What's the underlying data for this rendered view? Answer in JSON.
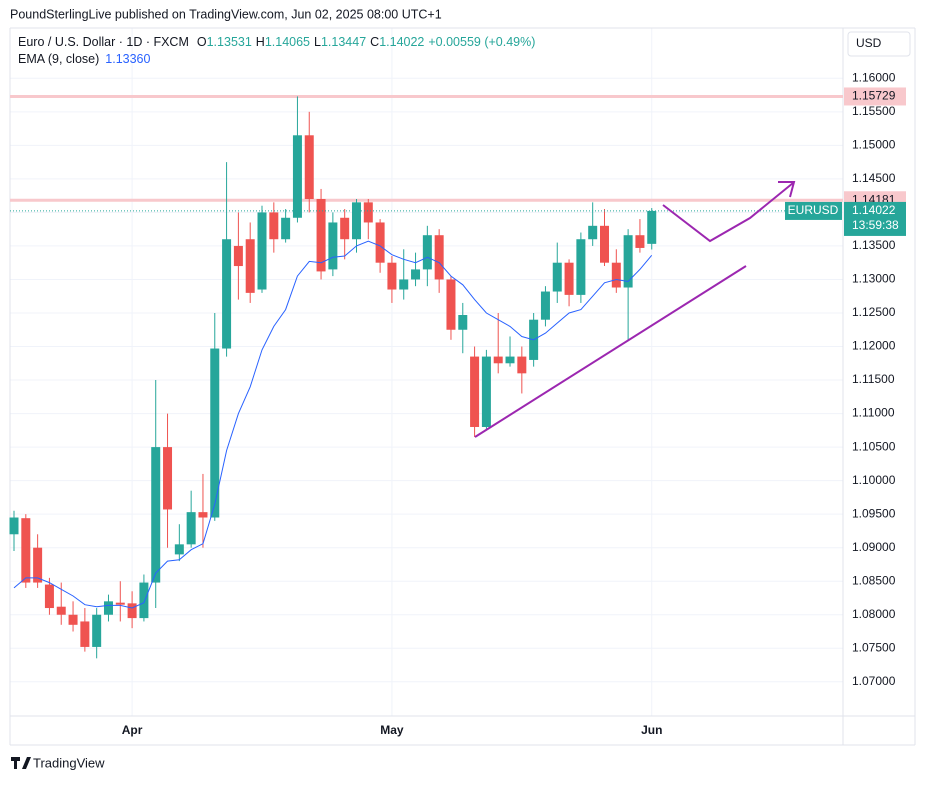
{
  "chart_data": {
    "type": "candlestick",
    "publisher": "PoundSterlingLive published on TradingView.com, Jun 02, 2025 08:00 UTC+1",
    "title": "Euro / U.S. Dollar · 1D · FXCM",
    "ohlc_labels": [
      "O",
      "H",
      "L",
      "C"
    ],
    "change": "+0.00559 (+0.49%)",
    "currency": "USD",
    "symbol": "EURUSD",
    "countdown": "13:59:38",
    "brand": "TradingView",
    "up_color": "#26a69a",
    "down_color": "#ef5350",
    "categories": [
      null,
      null,
      null,
      null,
      null,
      null,
      null,
      null,
      null,
      null,
      "Apr",
      null,
      null,
      null,
      null,
      null,
      null,
      null,
      null,
      null,
      null,
      null,
      null,
      null,
      null,
      null,
      null,
      null,
      null,
      null,
      null,
      null,
      "May",
      null,
      null,
      null,
      null,
      null,
      null,
      null,
      null,
      null,
      null,
      null,
      null,
      null,
      null,
      null,
      null,
      null,
      null,
      null,
      null,
      null,
      "Jun"
    ],
    "open": [
      1.092,
      1.0944,
      1.09,
      1.0845,
      1.0812,
      1.08,
      1.079,
      1.0752,
      1.08,
      1.0818,
      1.0817,
      1.0795,
      1.0848,
      1.105,
      1.089,
      1.0905,
      1.0953,
      1.0945,
      1.1197,
      1.135,
      1.136,
      1.1285,
      1.14,
      1.136,
      1.1392,
      1.1515,
      1.142,
      1.1315,
      1.1392,
      1.136,
      1.1415,
      1.1385,
      1.1325,
      1.1285,
      1.13,
      1.1315,
      1.1366,
      1.13,
      1.1225,
      1.1185,
      1.108,
      1.1185,
      1.1175,
      1.1185,
      1.118,
      1.124,
      1.1282,
      1.1325,
      1.1277,
      1.136,
      1.138,
      1.1325,
      1.1288,
      1.1366,
      1.13531
    ],
    "high": [
      1.0955,
      1.095,
      1.092,
      1.0855,
      1.0848,
      1.082,
      1.081,
      1.081,
      1.083,
      1.085,
      1.0835,
      1.086,
      1.115,
      1.11,
      1.0935,
      1.0985,
      1.101,
      1.125,
      1.1475,
      1.14,
      1.1385,
      1.141,
      1.1415,
      1.1405,
      1.1573,
      1.155,
      1.1435,
      1.14,
      1.1405,
      1.142,
      1.142,
      1.139,
      1.1335,
      1.1345,
      1.134,
      1.138,
      1.1375,
      1.1305,
      1.1265,
      1.12,
      1.1195,
      1.125,
      1.1215,
      1.12,
      1.125,
      1.129,
      1.1355,
      1.133,
      1.137,
      1.1415,
      1.1405,
      1.1345,
      1.1375,
      1.139,
      1.14065
    ],
    "low": [
      1.0895,
      1.084,
      1.084,
      1.08,
      1.0785,
      1.0775,
      1.0745,
      1.0735,
      1.079,
      1.079,
      1.078,
      1.079,
      1.081,
      1.09,
      1.088,
      1.09,
      1.09,
      1.094,
      1.1185,
      1.127,
      1.1265,
      1.128,
      1.134,
      1.1355,
      1.1385,
      1.14,
      1.13,
      1.1305,
      1.133,
      1.134,
      1.136,
      1.131,
      1.1265,
      1.127,
      1.129,
      1.129,
      1.128,
      1.121,
      1.119,
      1.1065,
      1.1075,
      1.116,
      1.117,
      1.113,
      1.117,
      1.123,
      1.1265,
      1.126,
      1.1265,
      1.135,
      1.132,
      1.128,
      1.121,
      1.134,
      1.13447
    ],
    "close": [
      1.0945,
      1.0848,
      1.0848,
      1.081,
      1.08,
      1.0785,
      1.0752,
      1.08,
      1.082,
      1.0815,
      1.0795,
      1.0848,
      1.105,
      1.0957,
      1.0905,
      1.0953,
      1.0945,
      1.1197,
      1.136,
      1.132,
      1.128,
      1.14,
      1.136,
      1.1392,
      1.1515,
      1.142,
      1.1312,
      1.1385,
      1.136,
      1.1415,
      1.1385,
      1.1325,
      1.1285,
      1.13,
      1.1315,
      1.1366,
      1.13,
      1.1225,
      1.1247,
      1.108,
      1.1185,
      1.1175,
      1.1185,
      1.116,
      1.124,
      1.1282,
      1.1325,
      1.1277,
      1.136,
      1.138,
      1.1325,
      1.1288,
      1.1366,
      1.1347,
      1.14022
    ],
    "ema": {
      "name": "EMA (9, close)",
      "color": "#2962ff",
      "value_label": "1.13360",
      "values": [
        1.084,
        1.0855,
        1.0855,
        1.0848,
        1.0838,
        1.0828,
        1.0815,
        1.0812,
        1.0814,
        1.0814,
        1.081,
        1.0818,
        1.0862,
        1.088,
        1.0882,
        1.0897,
        1.0906,
        1.0965,
        1.1045,
        1.11,
        1.114,
        1.1195,
        1.123,
        1.1255,
        1.1305,
        1.1327,
        1.1325,
        1.1333,
        1.1335,
        1.135,
        1.1357,
        1.135,
        1.1337,
        1.133,
        1.1325,
        1.1333,
        1.1325,
        1.1305,
        1.1292,
        1.127,
        1.125,
        1.124,
        1.123,
        1.1215,
        1.121,
        1.122,
        1.1235,
        1.125,
        1.1255,
        1.1275,
        1.1295,
        1.13,
        1.1297,
        1.1315,
        1.1336
      ]
    },
    "hlines": [
      {
        "value": 1.15729,
        "color": "#f8c8cc"
      },
      {
        "value": 1.14181,
        "color": "#f8c8cc"
      }
    ],
    "ylim": [
      1.0649,
      1.1675
    ],
    "yticks": [
      {
        "value": 1.07,
        "label": "1.07000"
      },
      {
        "value": 1.075,
        "label": "1.07500"
      },
      {
        "value": 1.08,
        "label": "1.08000"
      },
      {
        "value": 1.085,
        "label": "1.08500"
      },
      {
        "value": 1.09,
        "label": "1.09000"
      },
      {
        "value": 1.095,
        "label": "1.09500"
      },
      {
        "value": 1.1,
        "label": "1.10000"
      },
      {
        "value": 1.105,
        "label": "1.10500"
      },
      {
        "value": 1.11,
        "label": "1.11000"
      },
      {
        "value": 1.115,
        "label": "1.11500"
      },
      {
        "value": 1.12,
        "label": "1.12000"
      },
      {
        "value": 1.125,
        "label": "1.12500"
      },
      {
        "value": 1.13,
        "label": "1.13000"
      },
      {
        "value": 1.135,
        "label": "1.13500"
      },
      {
        "value": 1.14,
        "label": "1.14000"
      },
      {
        "value": 1.145,
        "label": "1.14500"
      },
      {
        "value": 1.15,
        "label": "1.15000"
      },
      {
        "value": 1.155,
        "label": "1.15500"
      },
      {
        "value": 1.16,
        "label": "1.16000"
      }
    ],
    "grid": true
  }
}
